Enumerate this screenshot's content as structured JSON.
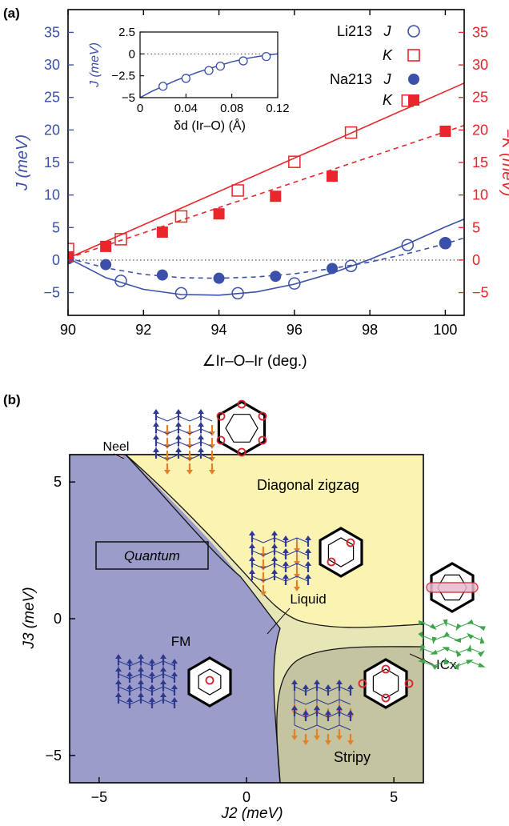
{
  "chart_data": [
    {
      "panel_label": "(a)",
      "type": "scatter",
      "xlabel": "∠Ir–O–Ir (deg.)",
      "ylabel_left": "J (meV)",
      "ylabel_right": "−K (meV)",
      "xlim": [
        90,
        100.5
      ],
      "ylim_left": [
        -8.5,
        38.5
      ],
      "ylim_right": [
        -8.5,
        38.5
      ],
      "x_ticks": [
        90,
        92,
        94,
        96,
        98,
        100
      ],
      "y_ticks_left": [
        -5,
        0,
        5,
        10,
        15,
        20,
        25,
        30,
        35
      ],
      "y_ticks_right": [
        -5,
        0,
        5,
        10,
        15,
        20,
        25,
        30,
        35
      ],
      "zero_line": "dotted",
      "legend_placement": "top-right",
      "legend": [
        {
          "compound": "Li213",
          "param": "J"
        },
        {
          "compound": "",
          "param": "K"
        },
        {
          "compound": "Na213",
          "param": "J"
        },
        {
          "compound": "",
          "param": "K"
        }
      ],
      "colors": {
        "J": "#3b50a8",
        "K": "#e8262b",
        "axis_left": "#3b50a8",
        "axis_right": "#e8262b"
      },
      "series": [
        {
          "name": "Li213 J",
          "marker": "open-circle",
          "axis": "left",
          "x": [
            90,
            91.4,
            93,
            94.5,
            96,
            97.5,
            99,
            100
          ],
          "y": [
            0.3,
            -3.2,
            -5.1,
            -5.1,
            -3.6,
            -0.9,
            2.3,
            2.6
          ]
        },
        {
          "name": "Li213 K",
          "marker": "open-square",
          "axis": "right",
          "x": [
            90,
            91.4,
            93,
            94.5,
            96,
            97.5,
            99
          ],
          "y": [
            1.7,
            3.2,
            6.7,
            10.7,
            15.1,
            19.6,
            24.5
          ]
        },
        {
          "name": "Na213 J",
          "marker": "filled-circle",
          "axis": "left",
          "x": [
            90,
            91,
            92.5,
            94,
            95.5,
            97,
            100
          ],
          "y": [
            0.3,
            -0.7,
            -2.3,
            -2.8,
            -2.5,
            -1.3,
            2.6
          ]
        },
        {
          "name": "Na213 K",
          "marker": "filled-square",
          "axis": "right",
          "x": [
            90,
            91,
            92.5,
            94,
            95.5,
            97,
            100
          ],
          "y": [
            0.5,
            2.1,
            4.3,
            7.1,
            9.8,
            12.9,
            19.8
          ]
        }
      ],
      "fits": [
        {
          "of": "Li213 J",
          "style": "solid",
          "x": [
            90,
            91,
            92,
            93,
            94,
            95,
            96,
            97,
            98,
            99,
            100,
            100.5
          ],
          "y": [
            0.3,
            -2.7,
            -4.5,
            -5.3,
            -5.4,
            -4.9,
            -3.7,
            -2.0,
            0.1,
            2.5,
            5.1,
            6.3
          ]
        },
        {
          "of": "Na213 J",
          "style": "dashed",
          "x": [
            90,
            91,
            92,
            93,
            94,
            95,
            96,
            97,
            98,
            99,
            100,
            100.5
          ],
          "y": [
            0.3,
            -1.2,
            -2.2,
            -2.7,
            -2.8,
            -2.6,
            -2.1,
            -1.3,
            -0.3,
            1.0,
            2.5,
            3.4
          ]
        },
        {
          "of": "Li213 K",
          "style": "solid",
          "x": [
            90,
            100.5
          ],
          "y": [
            0.3,
            27.2
          ]
        },
        {
          "of": "Na213 K",
          "style": "dashed",
          "x": [
            90,
            100.5
          ],
          "y": [
            0.3,
            20.7
          ]
        }
      ],
      "inset": {
        "type": "scatter",
        "xlabel": "δd (Ir–O) (Å)",
        "ylabel": "J (meV)",
        "xlim": [
          0,
          0.12
        ],
        "ylim": [
          -5,
          2.5
        ],
        "x_ticks": [
          "0",
          "0.04",
          "0.08",
          "0.12"
        ],
        "x_tick_values": [
          0,
          0.04,
          0.08,
          0.12
        ],
        "y_ticks": [
          "2.5",
          "0",
          "−2.5",
          "−5"
        ],
        "y_tick_values": [
          2.5,
          0,
          -2.5,
          -5
        ],
        "points": {
          "x": [
            0.02,
            0.04,
            0.06,
            0.07,
            0.09,
            0.11
          ],
          "y": [
            -3.7,
            -2.8,
            -1.9,
            -1.4,
            -0.8,
            -0.3
          ]
        },
        "fit": {
          "x": [
            0,
            0.01,
            0.02,
            0.03,
            0.04,
            0.05,
            0.06,
            0.07,
            0.08,
            0.09,
            0.1,
            0.11,
            0.12
          ],
          "y": [
            -5,
            -4.3,
            -3.7,
            -3.1,
            -2.6,
            -2.1,
            -1.7,
            -1.3,
            -0.9,
            -0.6,
            -0.35,
            -0.15,
            0
          ]
        }
      }
    },
    {
      "panel_label": "(b)",
      "type": "phase-diagram",
      "xlabel": "J2 (meV)",
      "ylabel": "J3 (meV)",
      "xlim": [
        -6,
        6
      ],
      "ylim": [
        -6,
        6
      ],
      "x_ticks": [
        "−5",
        "0",
        "5"
      ],
      "x_tick_values": [
        -5,
        0,
        5
      ],
      "y_ticks": [
        "5",
        "0",
        "−5"
      ],
      "y_tick_values": [
        5,
        0,
        -5
      ],
      "regions": [
        {
          "name": "FM",
          "color": "#9b9cc9"
        },
        {
          "name": "Diagonal zigzag",
          "color": "#fbf3b1"
        },
        {
          "name": "Liquid",
          "color": "#bcd9ea"
        },
        {
          "name": "Stripy",
          "color": "#c4c4a0"
        },
        {
          "name": "ICx",
          "color": "#e7e6b6"
        },
        {
          "name": "Neel",
          "color": "#e7b9d2"
        }
      ],
      "labels": {
        "neel": "Neel",
        "diagonal_zigzag": "Diagonal zigzag",
        "quantum": "Quantum",
        "liquid": "Liquid",
        "fm": "FM",
        "icx": "ICx",
        "stripy": "Stripy"
      },
      "spin_colors": {
        "up": "#2e3a8f",
        "down": "#e0822c",
        "green": "#3ea54d",
        "marker": "#d8232a"
      }
    }
  ]
}
